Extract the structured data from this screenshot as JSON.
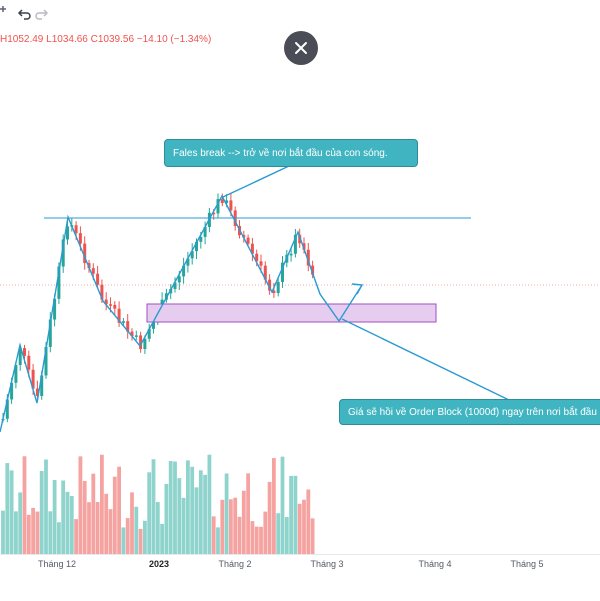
{
  "toolbar": {
    "undo_icon": "undo-icon",
    "redo_icon": "redo-icon",
    "mode_icon": "magnet-icon"
  },
  "ohlc": "H1052.49  L1034.66  C1039.56  −14.10 (−1.34%)",
  "close_icon": "close-icon",
  "annotations": {
    "top_callout": "Fales break --> trở về nơi bắt đầu của con sóng.",
    "bottom_callout": "Giá sẽ hồi về Order Block (1000đ) ngay trên nơi bắt đầu"
  },
  "chart_data": {
    "type": "candlestick",
    "x_ticks": [
      "Tháng 12",
      "2023",
      "Tháng 2",
      "Tháng 3",
      "Tháng 4",
      "Tháng 5"
    ],
    "colors": {
      "up": "#26a69a",
      "down": "#ef5350",
      "up_volume": "#8fd3cd",
      "down_volume": "#f5a3a1",
      "drawing": "#2a9bd1",
      "order_block": "#e6cdef",
      "order_block_border": "#a24ec0"
    }
  }
}
